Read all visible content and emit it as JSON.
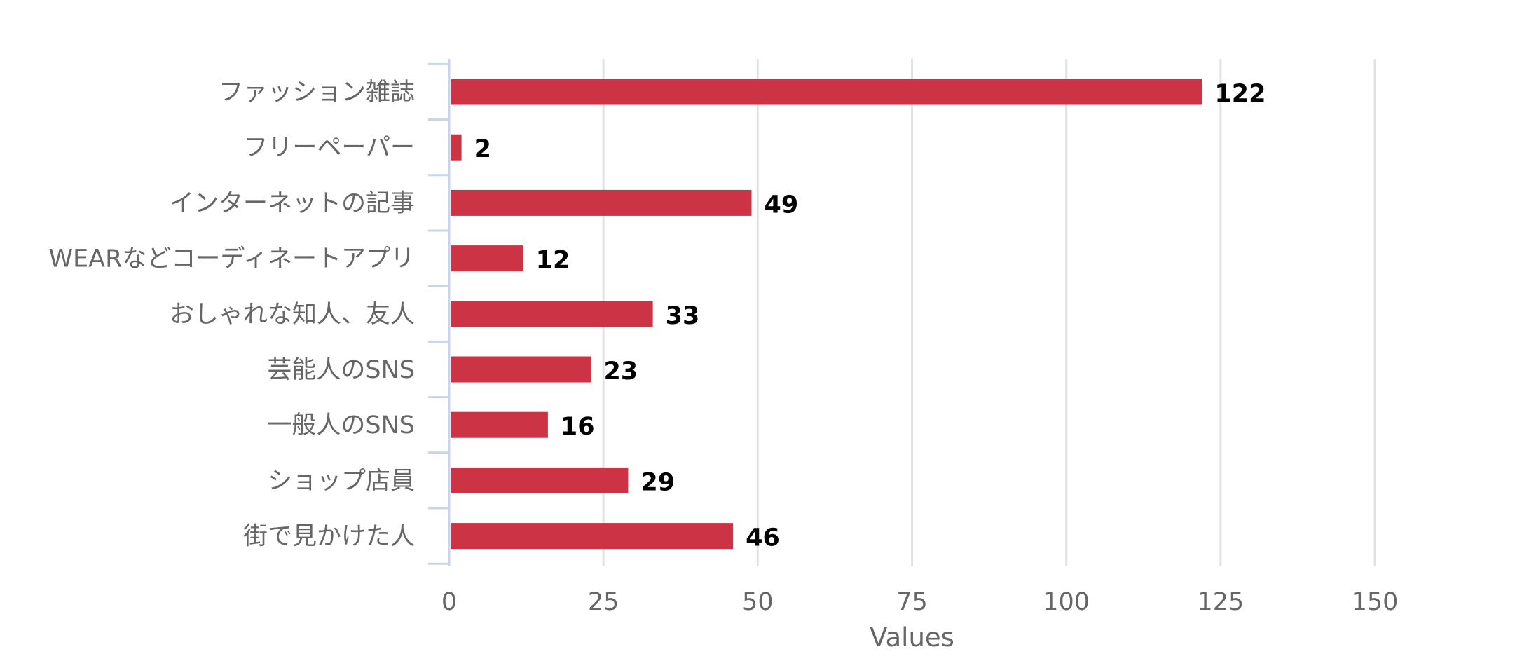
{
  "chart_data": {
    "type": "bar",
    "orientation": "horizontal",
    "categories": [
      "ファッション雑誌",
      "フリーペーパー",
      "インターネットの記事",
      "WEARなどコーディネートアプリ",
      "おしゃれな知人、友人",
      "芸能人のSNS",
      "一般人のSNS",
      "ショップ店員",
      "街で見かけた人"
    ],
    "values": [
      122,
      2,
      49,
      12,
      33,
      23,
      16,
      29,
      46
    ],
    "title": "",
    "xlabel": "Values",
    "ylabel": "",
    "xlim": [
      0,
      150
    ],
    "xticks": [
      0,
      25,
      50,
      75,
      100,
      125,
      150
    ],
    "grid": "vertical",
    "legend": "none",
    "data_labels": true,
    "bar_color": "#cc3344"
  }
}
